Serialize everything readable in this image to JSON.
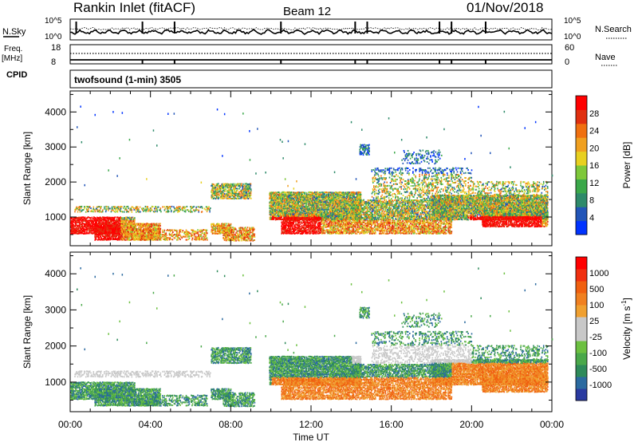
{
  "header": {
    "station": "Rankin Inlet (fitACF)",
    "beam": "Beam 12",
    "date": "01/Nov/2018"
  },
  "strip_labels": {
    "nsky": "N.Sky",
    "nsky_max": "10^5",
    "nsky_min": "10^0",
    "nsearch": "N.Search",
    "nsearch_max": "10^5",
    "nsearch_min": "10^0",
    "freq": "Freq.",
    "freq_unit": "[MHz]",
    "freq_max": "18",
    "freq_min": "8",
    "nave": "Nave",
    "nave_max": "60",
    "nave_min": "0",
    "cpid": "CPID",
    "program": "twofsound (1-min) 3505"
  },
  "chart_data": [
    {
      "type": "heatmap",
      "name": "power-panel",
      "ylabel": "Slant Range [km]",
      "yticks": [
        1000,
        2000,
        3000,
        4000
      ],
      "ylim": [
        180,
        4600
      ],
      "xlabel": "Time UT",
      "xticks": [
        "00:00",
        "04:00",
        "08:00",
        "12:00",
        "16:00",
        "20:00",
        "00:00"
      ],
      "xlim_hours": [
        0,
        24
      ],
      "colorbar": {
        "label": "Power [dB]",
        "ticks": [
          "4",
          "8",
          "12",
          "16",
          "20",
          "24",
          "28"
        ],
        "colors": [
          "#0033ff",
          "#2255b8",
          "#2e8a6a",
          "#3ba84a",
          "#7ec83a",
          "#e8d020",
          "#f0a020",
          "#f07010",
          "#e03010",
          "#ff0000"
        ]
      }
    },
    {
      "type": "heatmap",
      "name": "velocity-panel",
      "ylabel": "Slant Range [km]",
      "yticks": [
        1000,
        2000,
        3000,
        4000
      ],
      "ylim": [
        180,
        4600
      ],
      "xlabel": "Time UT",
      "xticks": [
        "00:00",
        "04:00",
        "08:00",
        "12:00",
        "16:00",
        "20:00",
        "00:00"
      ],
      "xlim_hours": [
        0,
        24
      ],
      "colorbar": {
        "label": "Velocity [m s^-1]",
        "ticks": [
          "1000",
          "500",
          "100",
          "25",
          "-25",
          "-100",
          "-500",
          "-1000"
        ],
        "colors": [
          "#2a3aa0",
          "#2b6aa0",
          "#2e8a5a",
          "#4aa84a",
          "#6cc040",
          "#c8c8c8",
          "#c8c8c8",
          "#f0a030",
          "#f08020",
          "#f06010",
          "#f03010",
          "#ff0000"
        ]
      }
    }
  ]
}
